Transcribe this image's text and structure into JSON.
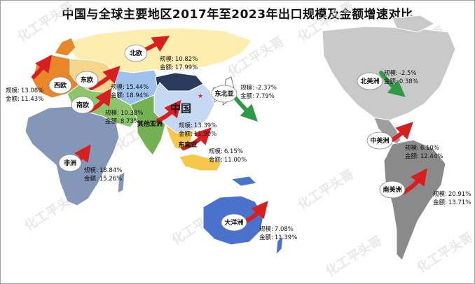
{
  "title": "中国与全球主要地区2017年至2023年出口规模及金额增速对比",
  "watermark": "化工平头哥",
  "colors": {
    "arrow_up": "#d81f1f",
    "arrow_down": "#2e9a47",
    "europe_west": "#e9862a",
    "europe_north": "#fdeeb0",
    "europe_east": "#f7d58a",
    "europe_south": "#8cc56b",
    "china": "#c5d8f4",
    "east_asia": "#ffffff",
    "central_asia": "#9ec2ec",
    "other_asia": "#74b154",
    "southeast_asia": "#f6c74a",
    "africa": "#8497b9",
    "oceania": "#4a72cc",
    "north_america": "#c9c9c9",
    "central_america": "#9e9e9e",
    "south_america": "#8a8a8a"
  },
  "regions": [
    {
      "key": "north_europe",
      "name": "北欧",
      "trend": "up",
      "scale_label": "规模:",
      "scale": "10.82%",
      "amount_label": "金额:",
      "amount": "17.99%"
    },
    {
      "key": "east_europe",
      "name": "东欧",
      "trend": "up",
      "scale_label": "规模:",
      "scale": "15.44%",
      "amount_label": "金额:",
      "amount": "18.94%"
    },
    {
      "key": "west_europe",
      "name": "西欧",
      "trend": "up",
      "scale_label": "规模:",
      "scale": "13.08%",
      "amount_label": "金额:",
      "amount": "11.43%"
    },
    {
      "key": "south_europe",
      "name": "南欧",
      "trend": "up",
      "scale_label": "规模:",
      "scale": "10.38%",
      "amount_label": "金额:",
      "amount": "8.73%"
    },
    {
      "key": "china",
      "name": "中国",
      "trend": "up",
      "scale_label": "规模:",
      "scale": "13.39%",
      "amount_label": "金额:",
      "amount": "11.90%"
    },
    {
      "key": "northeast_asia",
      "name": "东北亚",
      "trend": "down",
      "scale_label": "规模:",
      "scale": "-2.37%",
      "amount_label": "金额:",
      "amount": "7.79%"
    },
    {
      "key": "other_asia",
      "name": "其他亚洲",
      "trend": "up",
      "scale_label": "",
      "scale": "",
      "amount_label": "",
      "amount": ""
    },
    {
      "key": "southeast_asia",
      "name": "东南亚",
      "trend": "up",
      "scale_label": "规模:",
      "scale": "6.15%",
      "amount_label": "金额:",
      "amount": "11.00%"
    },
    {
      "key": "africa",
      "name": "非洲",
      "trend": "up",
      "scale_label": "规模:",
      "scale": "18.84%",
      "amount_label": "金额:",
      "amount": "15.26%"
    },
    {
      "key": "oceania",
      "name": "大洋洲",
      "trend": "up",
      "scale_label": "规模:",
      "scale": "7.08%",
      "amount_label": "金额:",
      "amount": "11.39%"
    },
    {
      "key": "north_america",
      "name": "北美洲",
      "trend": "down",
      "scale_label": "规模:",
      "scale": "-2.5%",
      "amount_label": "金额:",
      "amount": "0.38%"
    },
    {
      "key": "central_america",
      "name": "中美洲",
      "trend": "up",
      "scale_label": "规模:",
      "scale": "6.10%",
      "amount_label": "金额:",
      "amount": "12.44%"
    },
    {
      "key": "south_america",
      "name": "南美洲",
      "trend": "up",
      "scale_label": "规模:",
      "scale": "20.91%",
      "amount_label": "金额:",
      "amount": "13.71%"
    }
  ]
}
